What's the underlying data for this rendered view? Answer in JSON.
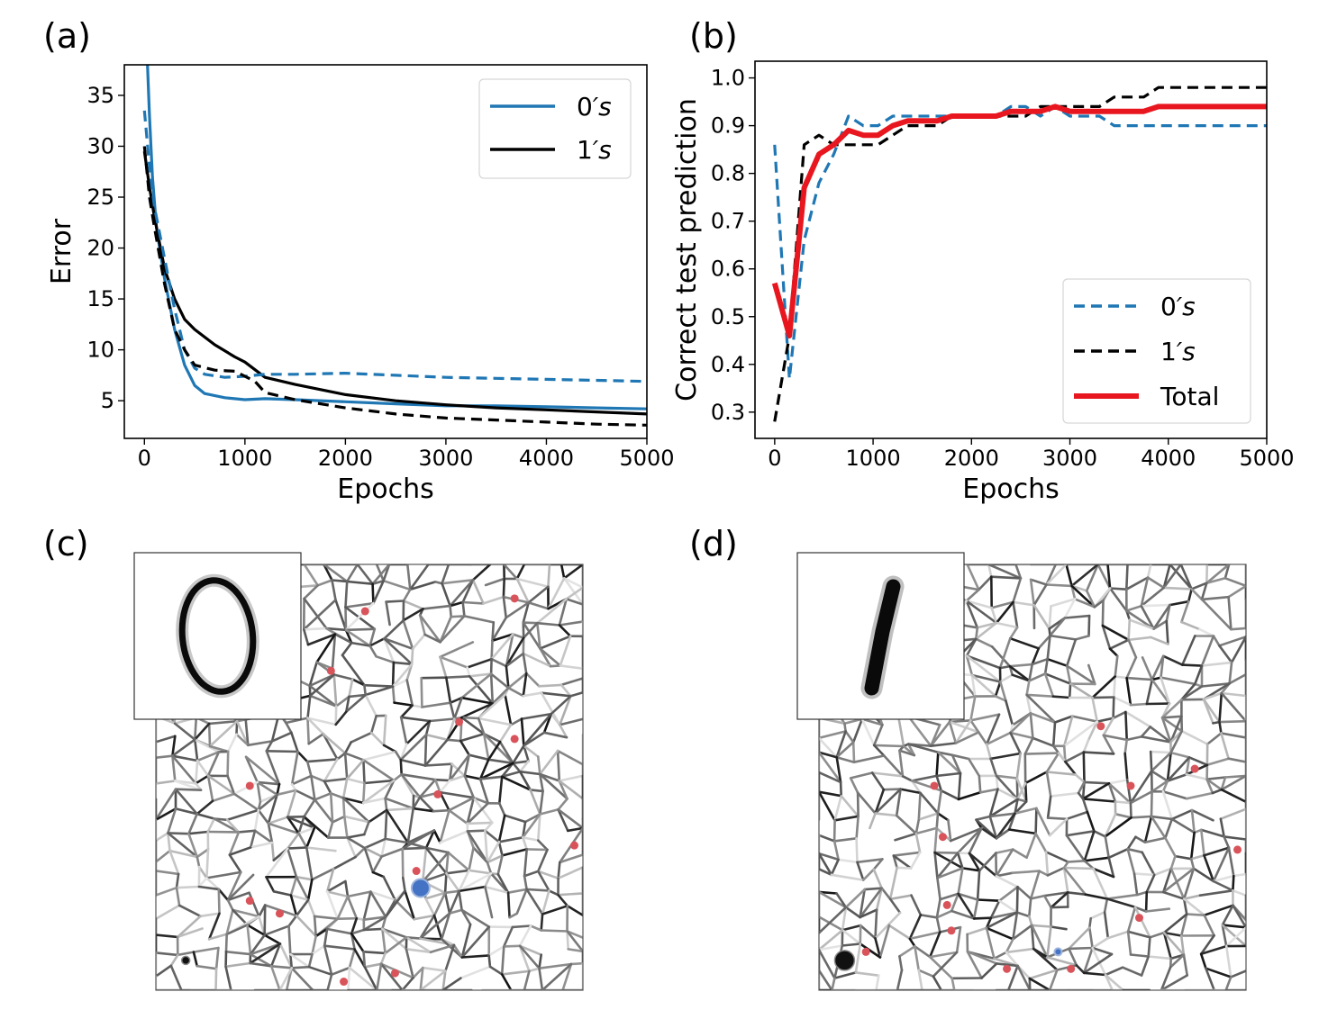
{
  "panels": {
    "a": "(a)",
    "b": "(b)",
    "c": "(c)",
    "d": "(d)"
  },
  "chart_data": [
    {
      "id": "a",
      "type": "line",
      "xlabel": "Epochs",
      "ylabel": "Error",
      "xlim": [
        -200,
        5000
      ],
      "ylim": [
        1.3,
        38
      ],
      "xticks": [
        0,
        1000,
        2000,
        3000,
        4000,
        5000
      ],
      "yticks": [
        5,
        10,
        15,
        20,
        25,
        30,
        35
      ],
      "legend": "top-right",
      "grid": false,
      "series": [
        {
          "name": "0's",
          "label_main": "0",
          "label_suffix": "′s",
          "color": "#1f77b4",
          "style": "solid",
          "x": [
            30,
            50,
            80,
            120,
            200,
            300,
            400,
            500,
            600,
            800,
            1000,
            1200,
            1500,
            2000,
            2500,
            3000,
            3500,
            4000,
            4500,
            5000
          ],
          "y": [
            38,
            33,
            27,
            22,
            17,
            12,
            8.5,
            6.5,
            5.7,
            5.3,
            5.1,
            5.2,
            5.1,
            4.9,
            4.7,
            4.5,
            4.5,
            4.4,
            4.3,
            4.2
          ]
        },
        {
          "name": "1's",
          "label_main": "1",
          "label_suffix": "′s",
          "color": "#000000",
          "style": "solid",
          "x": [
            0,
            50,
            100,
            200,
            300,
            400,
            500,
            700,
            900,
            1000,
            1200,
            1500,
            2000,
            2500,
            3000,
            3500,
            4000,
            4500,
            5000
          ],
          "y": [
            29.5,
            26,
            23,
            18,
            15,
            13,
            12,
            10.5,
            9.3,
            8.8,
            7.3,
            6.6,
            5.6,
            5.0,
            4.6,
            4.3,
            4.1,
            3.9,
            3.7
          ]
        },
        {
          "name": "0's (dashed)",
          "color": "#1f77b4",
          "style": "dashed",
          "x": [
            0,
            50,
            100,
            200,
            300,
            400,
            500,
            600,
            800,
            1000,
            1200,
            1500,
            2000,
            2500,
            3000,
            3500,
            4000,
            4500,
            5000
          ],
          "y": [
            33.5,
            28,
            24,
            19,
            14,
            10,
            8.2,
            7.6,
            7.3,
            7.4,
            7.6,
            7.6,
            7.7,
            7.5,
            7.3,
            7.2,
            7.1,
            7.0,
            6.9
          ]
        },
        {
          "name": "1's (dashed)",
          "color": "#000000",
          "style": "dashed",
          "x": [
            0,
            50,
            100,
            200,
            300,
            400,
            500,
            700,
            900,
            1100,
            1200,
            1500,
            2000,
            2500,
            3000,
            3500,
            4000,
            4500,
            5000
          ],
          "y": [
            30,
            25,
            22,
            16.5,
            12,
            10,
            8.5,
            8.0,
            7.9,
            6.9,
            5.8,
            5.1,
            4.3,
            3.7,
            3.3,
            3.1,
            2.9,
            2.7,
            2.6
          ]
        }
      ]
    },
    {
      "id": "b",
      "type": "line",
      "xlabel": "Epochs",
      "ylabel": "Correct test prediction",
      "xlim": [
        -200,
        5000
      ],
      "ylim": [
        0.245,
        1.035
      ],
      "xticks": [
        0,
        1000,
        2000,
        3000,
        4000,
        5000
      ],
      "yticks": [
        0.3,
        0.4,
        0.5,
        0.6,
        0.7,
        0.8,
        0.9,
        1.0
      ],
      "legend": "bottom-right",
      "grid": false,
      "series": [
        {
          "name": "0's",
          "label_main": "0",
          "label_suffix": "′s",
          "color": "#1f77b4",
          "style": "dashed",
          "x": [
            0,
            150,
            300,
            450,
            600,
            750,
            900,
            1050,
            1200,
            1350,
            1500,
            1650,
            1800,
            2100,
            2250,
            2400,
            2550,
            2700,
            2850,
            3000,
            3150,
            3300,
            3450,
            3600,
            3900,
            4200,
            4500,
            5000
          ],
          "y": [
            0.86,
            0.37,
            0.66,
            0.78,
            0.84,
            0.92,
            0.9,
            0.9,
            0.92,
            0.92,
            0.92,
            0.92,
            0.92,
            0.92,
            0.92,
            0.94,
            0.94,
            0.92,
            0.94,
            0.92,
            0.92,
            0.92,
            0.9,
            0.9,
            0.9,
            0.9,
            0.9,
            0.9
          ]
        },
        {
          "name": "1's",
          "label_main": "1",
          "label_suffix": "′s",
          "color": "#000000",
          "style": "dashed",
          "x": [
            0,
            150,
            300,
            450,
            600,
            750,
            900,
            1050,
            1200,
            1350,
            1500,
            1650,
            1800,
            2100,
            2250,
            2400,
            2550,
            2700,
            2850,
            3000,
            3150,
            3300,
            3450,
            3600,
            3750,
            3900,
            4200,
            4500,
            5000
          ],
          "y": [
            0.28,
            0.46,
            0.86,
            0.88,
            0.86,
            0.86,
            0.86,
            0.86,
            0.88,
            0.9,
            0.9,
            0.9,
            0.92,
            0.92,
            0.92,
            0.92,
            0.92,
            0.94,
            0.94,
            0.94,
            0.94,
            0.94,
            0.96,
            0.96,
            0.96,
            0.98,
            0.98,
            0.98,
            0.98
          ]
        },
        {
          "name": "Total",
          "label_main": "Total",
          "label_suffix": "",
          "color": "#e8161e",
          "style": "solid",
          "x": [
            0,
            150,
            300,
            450,
            600,
            750,
            900,
            1050,
            1200,
            1350,
            1500,
            1650,
            1800,
            2100,
            2250,
            2400,
            2550,
            2700,
            2850,
            3000,
            3150,
            3300,
            3450,
            3600,
            3750,
            3900,
            4200,
            4500,
            5000
          ],
          "y": [
            0.57,
            0.46,
            0.77,
            0.84,
            0.86,
            0.89,
            0.88,
            0.88,
            0.9,
            0.91,
            0.91,
            0.91,
            0.92,
            0.92,
            0.92,
            0.93,
            0.93,
            0.93,
            0.94,
            0.93,
            0.93,
            0.93,
            0.93,
            0.93,
            0.93,
            0.94,
            0.94,
            0.94,
            0.94
          ]
        }
      ]
    }
  ],
  "networks": [
    {
      "id": "c",
      "digit": "0",
      "seed": 7,
      "nodes_red": [
        [
          0.49,
          0.11
        ],
        [
          0.41,
          0.25
        ],
        [
          0.71,
          0.37
        ],
        [
          0.84,
          0.41
        ],
        [
          0.22,
          0.52
        ],
        [
          0.66,
          0.54
        ],
        [
          0.61,
          0.72
        ],
        [
          0.22,
          0.79
        ],
        [
          0.29,
          0.82
        ],
        [
          0.56,
          0.96
        ],
        [
          0.44,
          0.98
        ],
        [
          0.98,
          0.66
        ],
        [
          0.84,
          0.08
        ]
      ],
      "nodes_blue": [
        [
          0.62,
          0.76
        ]
      ],
      "nodes_black": [
        [
          0.07,
          0.93
        ]
      ]
    },
    {
      "id": "d",
      "digit": "1",
      "seed": 19,
      "nodes_red": [
        [
          0.27,
          0.52
        ],
        [
          0.29,
          0.64
        ],
        [
          0.73,
          0.52
        ],
        [
          0.98,
          0.67
        ],
        [
          0.66,
          0.38
        ],
        [
          0.75,
          0.83
        ],
        [
          0.3,
          0.8
        ],
        [
          0.31,
          0.86
        ],
        [
          0.11,
          0.91
        ],
        [
          0.44,
          0.95
        ],
        [
          0.59,
          0.95
        ],
        [
          0.25,
          0.13
        ],
        [
          0.88,
          0.48
        ]
      ],
      "nodes_blue": [
        [
          0.56,
          0.91
        ]
      ],
      "nodes_black": [
        [
          0.06,
          0.93
        ]
      ]
    }
  ]
}
